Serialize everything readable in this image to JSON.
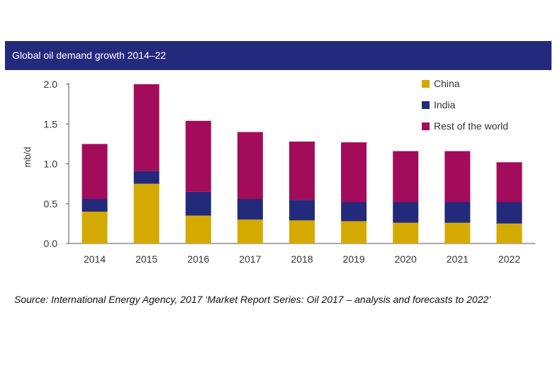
{
  "colors": {
    "title_bg": "#232a7c",
    "china": "#d4aa00",
    "india": "#232a7c",
    "rest": "#a30c5a",
    "axis": "#555555"
  },
  "chart_data": {
    "type": "bar",
    "stacked": true,
    "title": "Global oil demand growth 2014–22",
    "ylabel": "mb/d",
    "xlabel": "",
    "ylim": [
      0,
      2.0
    ],
    "yticks": [
      "0.0",
      "0.5",
      "1.0",
      "1.5",
      "2.0"
    ],
    "categories": [
      "2014",
      "2015",
      "2016",
      "2017",
      "2018",
      "2019",
      "2020",
      "2021",
      "2022"
    ],
    "series": [
      {
        "name": "China",
        "values": [
          0.4,
          0.75,
          0.35,
          0.3,
          0.29,
          0.28,
          0.26,
          0.26,
          0.25
        ]
      },
      {
        "name": "India",
        "values": [
          0.16,
          0.16,
          0.3,
          0.26,
          0.26,
          0.24,
          0.26,
          0.26,
          0.27
        ]
      },
      {
        "name": "Rest of the world",
        "values": [
          0.69,
          1.09,
          0.89,
          0.84,
          0.73,
          0.75,
          0.64,
          0.64,
          0.5
        ]
      }
    ],
    "legend_position": "top-right",
    "grid": false
  },
  "source": "Source: International Energy Agency, 2017 ‘Market Report Series: Oil 2017 – analysis and forecasts to 2022’"
}
